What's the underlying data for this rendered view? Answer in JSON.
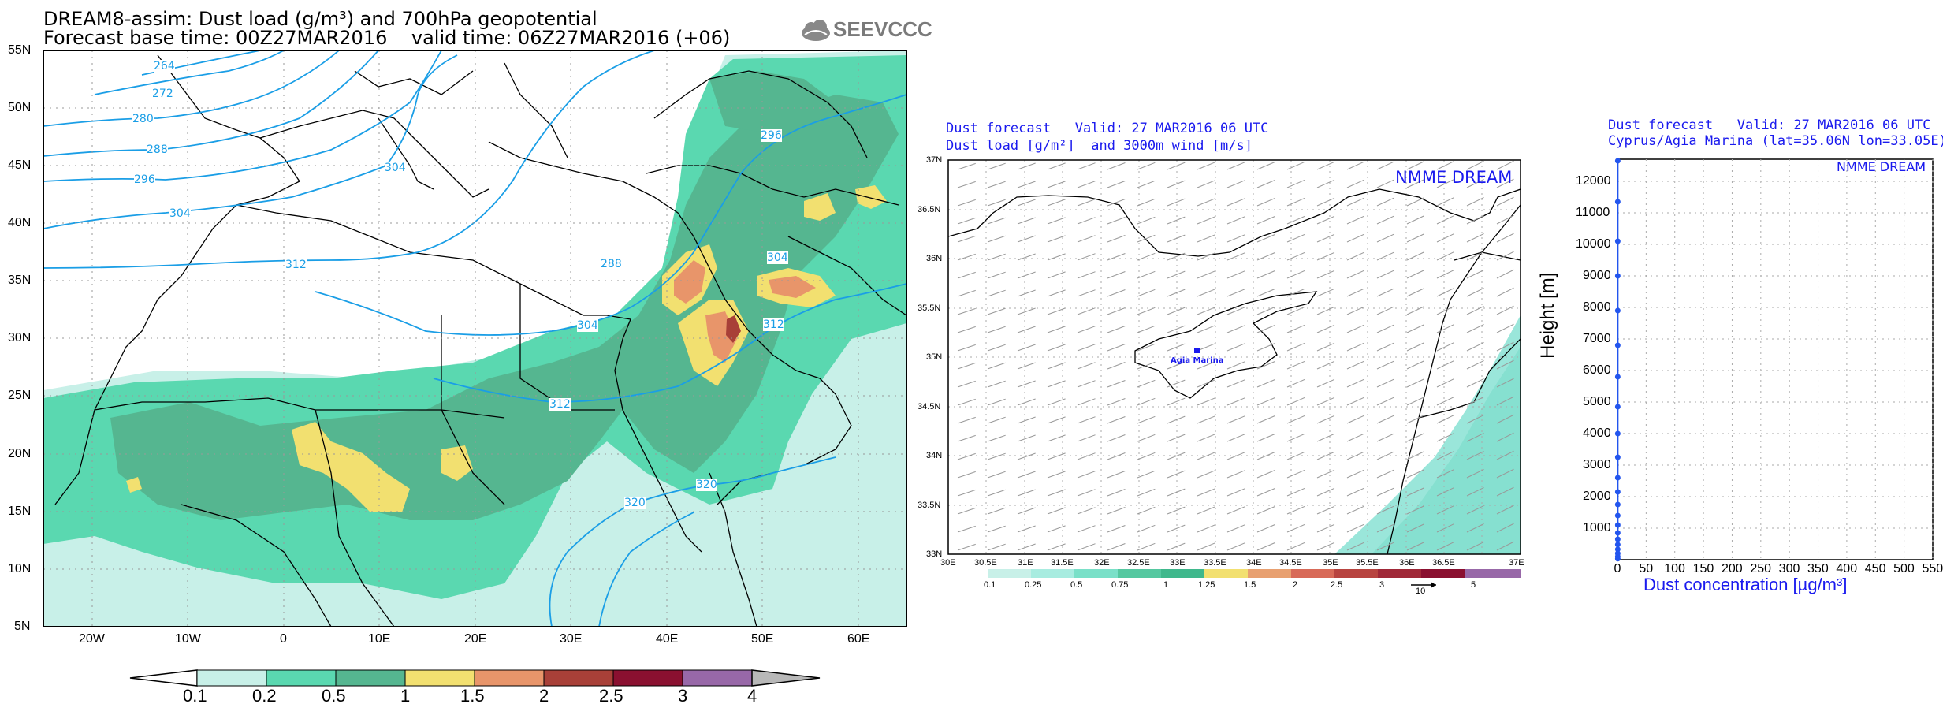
{
  "left_map": {
    "title_line1": "DREAM8-assim: Dust load (g/m³) and 700hPa geopotential",
    "title_line2": "Forecast base time: 00Z27MAR2016    valid time: 06Z27MAR2016 (+06)",
    "brand": "SEEVCCC",
    "lat_labels": [
      "55N",
      "50N",
      "45N",
      "40N",
      "35N",
      "30N",
      "25N",
      "20N",
      "15N",
      "10N",
      "5N"
    ],
    "lon_labels": [
      "20W",
      "10W",
      "0",
      "10E",
      "20E",
      "30E",
      "40E",
      "50E",
      "60E"
    ],
    "contour_labels": [
      "264",
      "272",
      "280",
      "288",
      "296",
      "304",
      "312",
      "304",
      "296",
      "288",
      "304",
      "304",
      "312",
      "312",
      "320",
      "320"
    ],
    "colorbar_labels": [
      "0.1",
      "0.2",
      "0.5",
      "1",
      "1.5",
      "2",
      "2.5",
      "3",
      "4"
    ]
  },
  "mid_map": {
    "title_line1": "Dust forecast   Valid: 27 MAR2016 06 UTC",
    "title_line2": "Dust load [g/m²]  and 3000m wind [m/s]",
    "badge": "NMME DREAM",
    "station_label": "Agia Marina",
    "lat_labels": [
      "37N",
      "36.5N",
      "36N",
      "35.5N",
      "35N",
      "34.5N",
      "34N",
      "33.5N",
      "33N"
    ],
    "lon_labels": [
      "30E",
      "30.5E",
      "31E",
      "31.5E",
      "32E",
      "32.5E",
      "33E",
      "33.5E",
      "34E",
      "34.5E",
      "35E",
      "35.5E",
      "36E",
      "36.5E",
      "37E"
    ],
    "colorbar_labels": [
      "0.1",
      "0.25",
      "0.5",
      "0.75",
      "1",
      "1.25",
      "1.5",
      "2",
      "2.5",
      "3",
      "5"
    ],
    "wind_ref_label": "10"
  },
  "profile": {
    "title_line1": "Dust forecast   Valid: 27 MAR2016 06 UTC",
    "title_line2": "Cyprus/Agia Marina (lat=35.06N lon=33.05E)",
    "badge": "NMME DREAM",
    "ylabel": "Height [m]",
    "xlabel": "Dust concentration [µg/m³]"
  },
  "chart_data": {
    "type": "line",
    "title": "Cyprus/Agia Marina (lat=35.06N lon=33.05E)",
    "xlabel": "Dust concentration [µg/m³]",
    "ylabel": "Height [m]",
    "xlim": [
      0,
      550
    ],
    "ylim": [
      0,
      12700
    ],
    "x_ticks": [
      0,
      50,
      100,
      150,
      200,
      250,
      300,
      350,
      400,
      450,
      500,
      550
    ],
    "y_ticks": [
      1000,
      2000,
      3000,
      4000,
      5000,
      6000,
      7000,
      8000,
      9000,
      10000,
      11000,
      12000
    ],
    "series": [
      {
        "name": "dust concentration",
        "color": "#2255ee",
        "heights": [
          30,
          100,
          200,
          330,
          480,
          650,
          850,
          1100,
          1400,
          1750,
          2150,
          2600,
          3250,
          4000,
          4850,
          5800,
          6800,
          7900,
          9000,
          10100,
          11350,
          12650
        ],
        "values": [
          0.5,
          0.5,
          0.5,
          0.5,
          0.5,
          0.5,
          0.5,
          0.5,
          0.5,
          0.5,
          0.5,
          0.5,
          0.5,
          0.5,
          0.5,
          0.5,
          0.5,
          0.5,
          0.5,
          0.5,
          0.5,
          0.5
        ]
      }
    ]
  },
  "colors": {
    "c01": "#c8f0e8",
    "c02": "#5ad8b0",
    "c05": "#55b690",
    "c1": "#f2e070",
    "c15": "#e8956a",
    "c2": "#a84038",
    "c25": "#8a1030",
    "c3": "#9868a8",
    "contour": "#1a9ee6",
    "profile": "#2255ee"
  }
}
